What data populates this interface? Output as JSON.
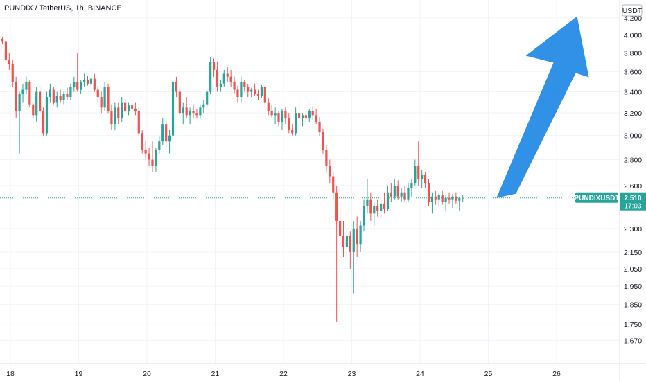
{
  "chart_title": "PUNDIX / TetherUS, 1h, BINANCE",
  "currency_badge": "USDT",
  "price_tag": {
    "symbol": "PUNDIXUSDT",
    "price": "2.510",
    "countdown": "17:03"
  },
  "colors": {
    "up": "#26a69a",
    "down": "#ef5350",
    "arrow": "#1e88e5",
    "tag": "#26a69a",
    "grid": "#f0f3fa"
  },
  "chart_data": {
    "type": "candlestick",
    "title": "PUNDIX / TetherUS, 1h, BINANCE",
    "xlabel": "",
    "ylabel": "",
    "scale": "log",
    "ylim": [
      1.6,
      4.3
    ],
    "xlim": [
      18,
      26.6
    ],
    "grid": true,
    "y_ticks": [
      "4.200",
      "4.000",
      "3.800",
      "3.600",
      "3.400",
      "3.200",
      "3.000",
      "2.800",
      "2.600",
      "2.300",
      "2.150",
      "2.050",
      "1.950",
      "1.850",
      "1.750",
      "1.670"
    ],
    "x_ticks": [
      "18",
      "19",
      "20",
      "21",
      "22",
      "23",
      "24",
      "25",
      "26"
    ],
    "last_price": 2.51,
    "annotation": {
      "type": "arrow",
      "direction": "up",
      "from": [
        25.12,
        2.51
      ],
      "to": [
        26.3,
        4.22
      ]
    },
    "candles": [
      [
        3.95,
        3.97,
        3.9,
        3.93
      ],
      [
        3.93,
        3.95,
        3.68,
        3.72
      ],
      [
        3.72,
        3.8,
        3.62,
        3.68
      ],
      [
        3.68,
        3.72,
        3.45,
        3.5
      ],
      [
        3.5,
        3.55,
        3.15,
        3.22
      ],
      [
        3.22,
        3.4,
        2.85,
        3.38
      ],
      [
        3.38,
        3.48,
        3.3,
        3.42
      ],
      [
        3.42,
        3.55,
        3.38,
        3.5
      ],
      [
        3.5,
        3.52,
        3.25,
        3.28
      ],
      [
        3.28,
        3.3,
        3.15,
        3.18
      ],
      [
        3.18,
        3.45,
        3.12,
        3.4
      ],
      [
        3.4,
        3.45,
        3.2,
        3.22
      ],
      [
        3.22,
        3.25,
        3.0,
        3.02
      ],
      [
        3.02,
        3.4,
        3.0,
        3.35
      ],
      [
        3.35,
        3.48,
        3.3,
        3.42
      ],
      [
        3.42,
        3.45,
        3.28,
        3.3
      ],
      [
        3.3,
        3.4,
        3.25,
        3.36
      ],
      [
        3.36,
        3.42,
        3.3,
        3.32
      ],
      [
        3.32,
        3.4,
        3.28,
        3.38
      ],
      [
        3.38,
        3.44,
        3.32,
        3.35
      ],
      [
        3.35,
        3.48,
        3.32,
        3.45
      ],
      [
        3.45,
        3.55,
        3.4,
        3.5
      ],
      [
        3.5,
        3.8,
        3.4,
        3.42
      ],
      [
        3.42,
        3.52,
        3.38,
        3.5
      ],
      [
        3.5,
        3.58,
        3.45,
        3.52
      ],
      [
        3.52,
        3.56,
        3.46,
        3.48
      ],
      [
        3.48,
        3.55,
        3.44,
        3.53
      ],
      [
        3.53,
        3.58,
        3.4,
        3.42
      ],
      [
        3.42,
        3.46,
        3.3,
        3.35
      ],
      [
        3.35,
        3.4,
        3.2,
        3.25
      ],
      [
        3.25,
        3.5,
        3.22,
        3.45
      ],
      [
        3.45,
        3.48,
        3.2,
        3.22
      ],
      [
        3.22,
        3.28,
        3.05,
        3.1
      ],
      [
        3.1,
        3.3,
        3.05,
        3.25
      ],
      [
        3.25,
        3.3,
        3.1,
        3.15
      ],
      [
        3.15,
        3.35,
        3.12,
        3.3
      ],
      [
        3.3,
        3.32,
        3.2,
        3.22
      ],
      [
        3.22,
        3.3,
        3.18,
        3.27
      ],
      [
        3.27,
        3.32,
        3.2,
        3.24
      ],
      [
        3.24,
        3.3,
        3.18,
        3.22
      ],
      [
        3.22,
        3.25,
        3.0,
        3.02
      ],
      [
        3.02,
        3.05,
        2.85,
        2.88
      ],
      [
        2.88,
        2.95,
        2.8,
        2.85
      ],
      [
        2.85,
        2.9,
        2.75,
        2.8
      ],
      [
        2.8,
        2.95,
        2.7,
        2.75
      ],
      [
        2.75,
        2.9,
        2.7,
        2.88
      ],
      [
        2.88,
        3.0,
        2.85,
        2.95
      ],
      [
        2.95,
        3.15,
        2.92,
        3.1
      ],
      [
        3.1,
        3.12,
        2.9,
        2.95
      ],
      [
        2.95,
        3.05,
        2.85,
        3.0
      ],
      [
        3.0,
        3.55,
        2.98,
        3.5
      ],
      [
        3.5,
        3.55,
        3.35,
        3.4
      ],
      [
        3.4,
        3.45,
        3.18,
        3.2
      ],
      [
        3.2,
        3.3,
        3.1,
        3.25
      ],
      [
        3.25,
        3.35,
        3.15,
        3.18
      ],
      [
        3.18,
        3.25,
        3.1,
        3.22
      ],
      [
        3.22,
        3.28,
        3.15,
        3.2
      ],
      [
        3.2,
        3.24,
        3.15,
        3.18
      ],
      [
        3.18,
        3.28,
        3.15,
        3.25
      ],
      [
        3.25,
        3.32,
        3.2,
        3.28
      ],
      [
        3.28,
        3.42,
        3.25,
        3.4
      ],
      [
        3.4,
        3.75,
        3.38,
        3.7
      ],
      [
        3.7,
        3.74,
        3.55,
        3.62
      ],
      [
        3.62,
        3.7,
        3.4,
        3.45
      ],
      [
        3.45,
        3.52,
        3.4,
        3.48
      ],
      [
        3.48,
        3.62,
        3.45,
        3.58
      ],
      [
        3.58,
        3.65,
        3.5,
        3.55
      ],
      [
        3.55,
        3.62,
        3.45,
        3.5
      ],
      [
        3.5,
        3.55,
        3.38,
        3.42
      ],
      [
        3.42,
        3.46,
        3.3,
        3.35
      ],
      [
        3.35,
        3.55,
        3.3,
        3.5
      ],
      [
        3.5,
        3.52,
        3.4,
        3.45
      ],
      [
        3.45,
        3.48,
        3.35,
        3.4
      ],
      [
        3.4,
        3.44,
        3.35,
        3.42
      ],
      [
        3.42,
        3.48,
        3.36,
        3.38
      ],
      [
        3.38,
        3.42,
        3.32,
        3.36
      ],
      [
        3.36,
        3.47,
        3.34,
        3.45
      ],
      [
        3.45,
        3.46,
        3.28,
        3.3
      ],
      [
        3.3,
        3.34,
        3.18,
        3.22
      ],
      [
        3.22,
        3.28,
        3.15,
        3.18
      ],
      [
        3.18,
        3.25,
        3.1,
        3.2
      ],
      [
        3.2,
        3.22,
        3.08,
        3.12
      ],
      [
        3.12,
        3.24,
        3.05,
        3.22
      ],
      [
        3.22,
        3.25,
        3.1,
        3.15
      ],
      [
        3.15,
        3.2,
        3.02,
        3.05
      ],
      [
        3.05,
        3.1,
        3.0,
        3.02
      ],
      [
        3.02,
        3.25,
        3.0,
        3.2
      ],
      [
        3.2,
        3.35,
        3.1,
        3.15
      ],
      [
        3.15,
        3.2,
        3.08,
        3.18
      ],
      [
        3.18,
        3.22,
        3.12,
        3.15
      ],
      [
        3.15,
        3.24,
        3.12,
        3.22
      ],
      [
        3.22,
        3.26,
        3.14,
        3.18
      ],
      [
        3.18,
        3.24,
        3.1,
        3.12
      ],
      [
        3.12,
        3.16,
        3.0,
        3.03
      ],
      [
        3.03,
        3.06,
        2.85,
        2.88
      ],
      [
        2.88,
        2.92,
        2.7,
        2.75
      ],
      [
        2.75,
        2.8,
        2.62,
        2.67
      ],
      [
        2.67,
        2.7,
        2.5,
        2.55
      ],
      [
        2.55,
        2.6,
        1.76,
        2.35
      ],
      [
        2.35,
        2.45,
        2.2,
        2.25
      ],
      [
        2.25,
        2.35,
        2.12,
        2.18
      ],
      [
        2.18,
        2.3,
        2.1,
        2.25
      ],
      [
        2.25,
        2.28,
        2.05,
        2.15
      ],
      [
        2.15,
        2.35,
        1.91,
        2.3
      ],
      [
        2.3,
        2.38,
        2.12,
        2.2
      ],
      [
        2.2,
        2.35,
        2.15,
        2.32
      ],
      [
        2.32,
        2.5,
        2.28,
        2.45
      ],
      [
        2.45,
        2.65,
        2.4,
        2.5
      ],
      [
        2.5,
        2.55,
        2.35,
        2.4
      ],
      [
        2.4,
        2.48,
        2.32,
        2.45
      ],
      [
        2.45,
        2.5,
        2.38,
        2.42
      ],
      [
        2.42,
        2.5,
        2.38,
        2.47
      ],
      [
        2.47,
        2.55,
        2.4,
        2.43
      ],
      [
        2.43,
        2.6,
        2.42,
        2.55
      ],
      [
        2.55,
        2.62,
        2.48,
        2.52
      ],
      [
        2.52,
        2.65,
        2.5,
        2.6
      ],
      [
        2.6,
        2.64,
        2.5,
        2.52
      ],
      [
        2.52,
        2.58,
        2.48,
        2.55
      ],
      [
        2.55,
        2.6,
        2.48,
        2.5
      ],
      [
        2.5,
        2.62,
        2.48,
        2.58
      ],
      [
        2.58,
        2.65,
        2.52,
        2.62
      ],
      [
        2.62,
        2.8,
        2.6,
        2.75
      ],
      [
        2.75,
        2.95,
        2.6,
        2.65
      ],
      [
        2.65,
        2.72,
        2.58,
        2.68
      ],
      [
        2.68,
        2.7,
        2.58,
        2.62
      ],
      [
        2.62,
        2.65,
        2.45,
        2.48
      ],
      [
        2.48,
        2.55,
        2.4,
        2.52
      ],
      [
        2.52,
        2.56,
        2.46,
        2.5
      ],
      [
        2.5,
        2.55,
        2.45,
        2.53
      ],
      [
        2.53,
        2.56,
        2.46,
        2.48
      ],
      [
        2.48,
        2.53,
        2.42,
        2.51
      ],
      [
        2.51,
        2.55,
        2.47,
        2.5
      ],
      [
        2.5,
        2.54,
        2.44,
        2.52
      ],
      [
        2.52,
        2.55,
        2.47,
        2.49
      ],
      [
        2.49,
        2.52,
        2.42,
        2.51
      ],
      [
        2.51,
        2.53,
        2.48,
        2.51
      ]
    ]
  }
}
